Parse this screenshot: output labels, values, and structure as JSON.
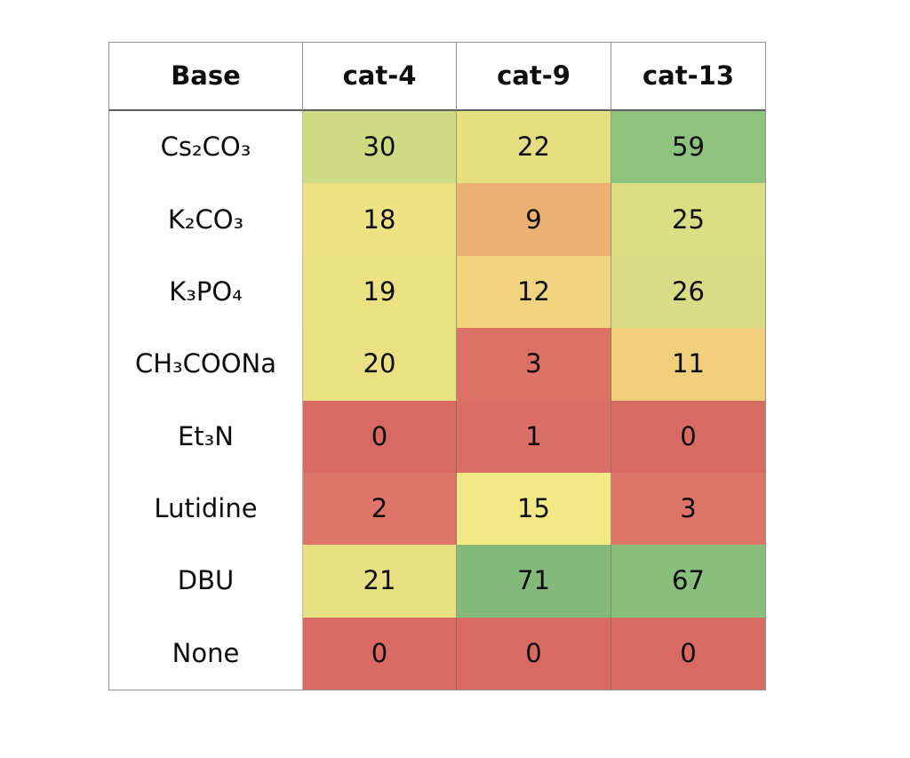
{
  "page": {
    "background": "#ffffff"
  },
  "table": {
    "header": {
      "base_label": "Base",
      "columns": [
        "cat-4",
        "cat-9",
        "cat-13"
      ]
    },
    "rows": [
      {
        "label": "Cs₂CO₃",
        "cells": [
          {
            "value": "30",
            "color": "#CFDB82"
          },
          {
            "value": "22",
            "color": "#E5DF82"
          },
          {
            "value": "59",
            "color": "#8EC37E"
          }
        ]
      },
      {
        "label": "K₂CO₃",
        "cells": [
          {
            "value": "18",
            "color": "#EDE385"
          },
          {
            "value": "9",
            "color": "#EBB273"
          },
          {
            "value": "25",
            "color": "#DCDE84"
          }
        ]
      },
      {
        "label": "K₃PO₄",
        "cells": [
          {
            "value": "19",
            "color": "#EBE284"
          },
          {
            "value": "12",
            "color": "#F2D480"
          },
          {
            "value": "26",
            "color": "#D9DC84"
          }
        ]
      },
      {
        "label": "CH₃COONa",
        "cells": [
          {
            "value": "20",
            "color": "#E9E183"
          },
          {
            "value": "3",
            "color": "#DC7166"
          },
          {
            "value": "11",
            "color": "#F1CF7D"
          }
        ]
      },
      {
        "label": "Et₃N",
        "cells": [
          {
            "value": "0",
            "color": "#D96A63"
          },
          {
            "value": "1",
            "color": "#DB6E65"
          },
          {
            "value": "0",
            "color": "#D96A63"
          }
        ]
      },
      {
        "label": "Lutidine",
        "cells": [
          {
            "value": "2",
            "color": "#DD7569"
          },
          {
            "value": "15",
            "color": "#F2E886"
          },
          {
            "value": "3",
            "color": "#DD7468"
          }
        ]
      },
      {
        "label": "DBU",
        "cells": [
          {
            "value": "21",
            "color": "#E7E083"
          },
          {
            "value": "71",
            "color": "#83BA7A"
          },
          {
            "value": "67",
            "color": "#89BE7C"
          }
        ]
      },
      {
        "label": "None",
        "cells": [
          {
            "value": "0",
            "color": "#D96A63"
          },
          {
            "value": "0",
            "color": "#D96A63"
          },
          {
            "value": "0",
            "color": "#D96A63"
          }
        ]
      }
    ]
  },
  "chart_data": {
    "type": "heatmap",
    "title": "",
    "row_header": "Base",
    "rows": [
      "Cs2CO3",
      "K2CO3",
      "K3PO4",
      "CH3COONa",
      "Et3N",
      "Lutidine",
      "DBU",
      "None"
    ],
    "columns": [
      "cat-4",
      "cat-9",
      "cat-13"
    ],
    "values": [
      [
        30,
        22,
        59
      ],
      [
        18,
        9,
        25
      ],
      [
        19,
        12,
        26
      ],
      [
        20,
        3,
        11
      ],
      [
        0,
        1,
        0
      ],
      [
        2,
        15,
        3
      ],
      [
        21,
        71,
        67
      ],
      [
        0,
        0,
        0
      ]
    ],
    "colormap": "red-yellow-green",
    "color_scale": {
      "min_color": "#D96A63",
      "mid_color": "#F2E886",
      "max_color": "#83BA7A"
    },
    "value_range": [
      0,
      71
    ],
    "grid": true,
    "legend": false
  }
}
